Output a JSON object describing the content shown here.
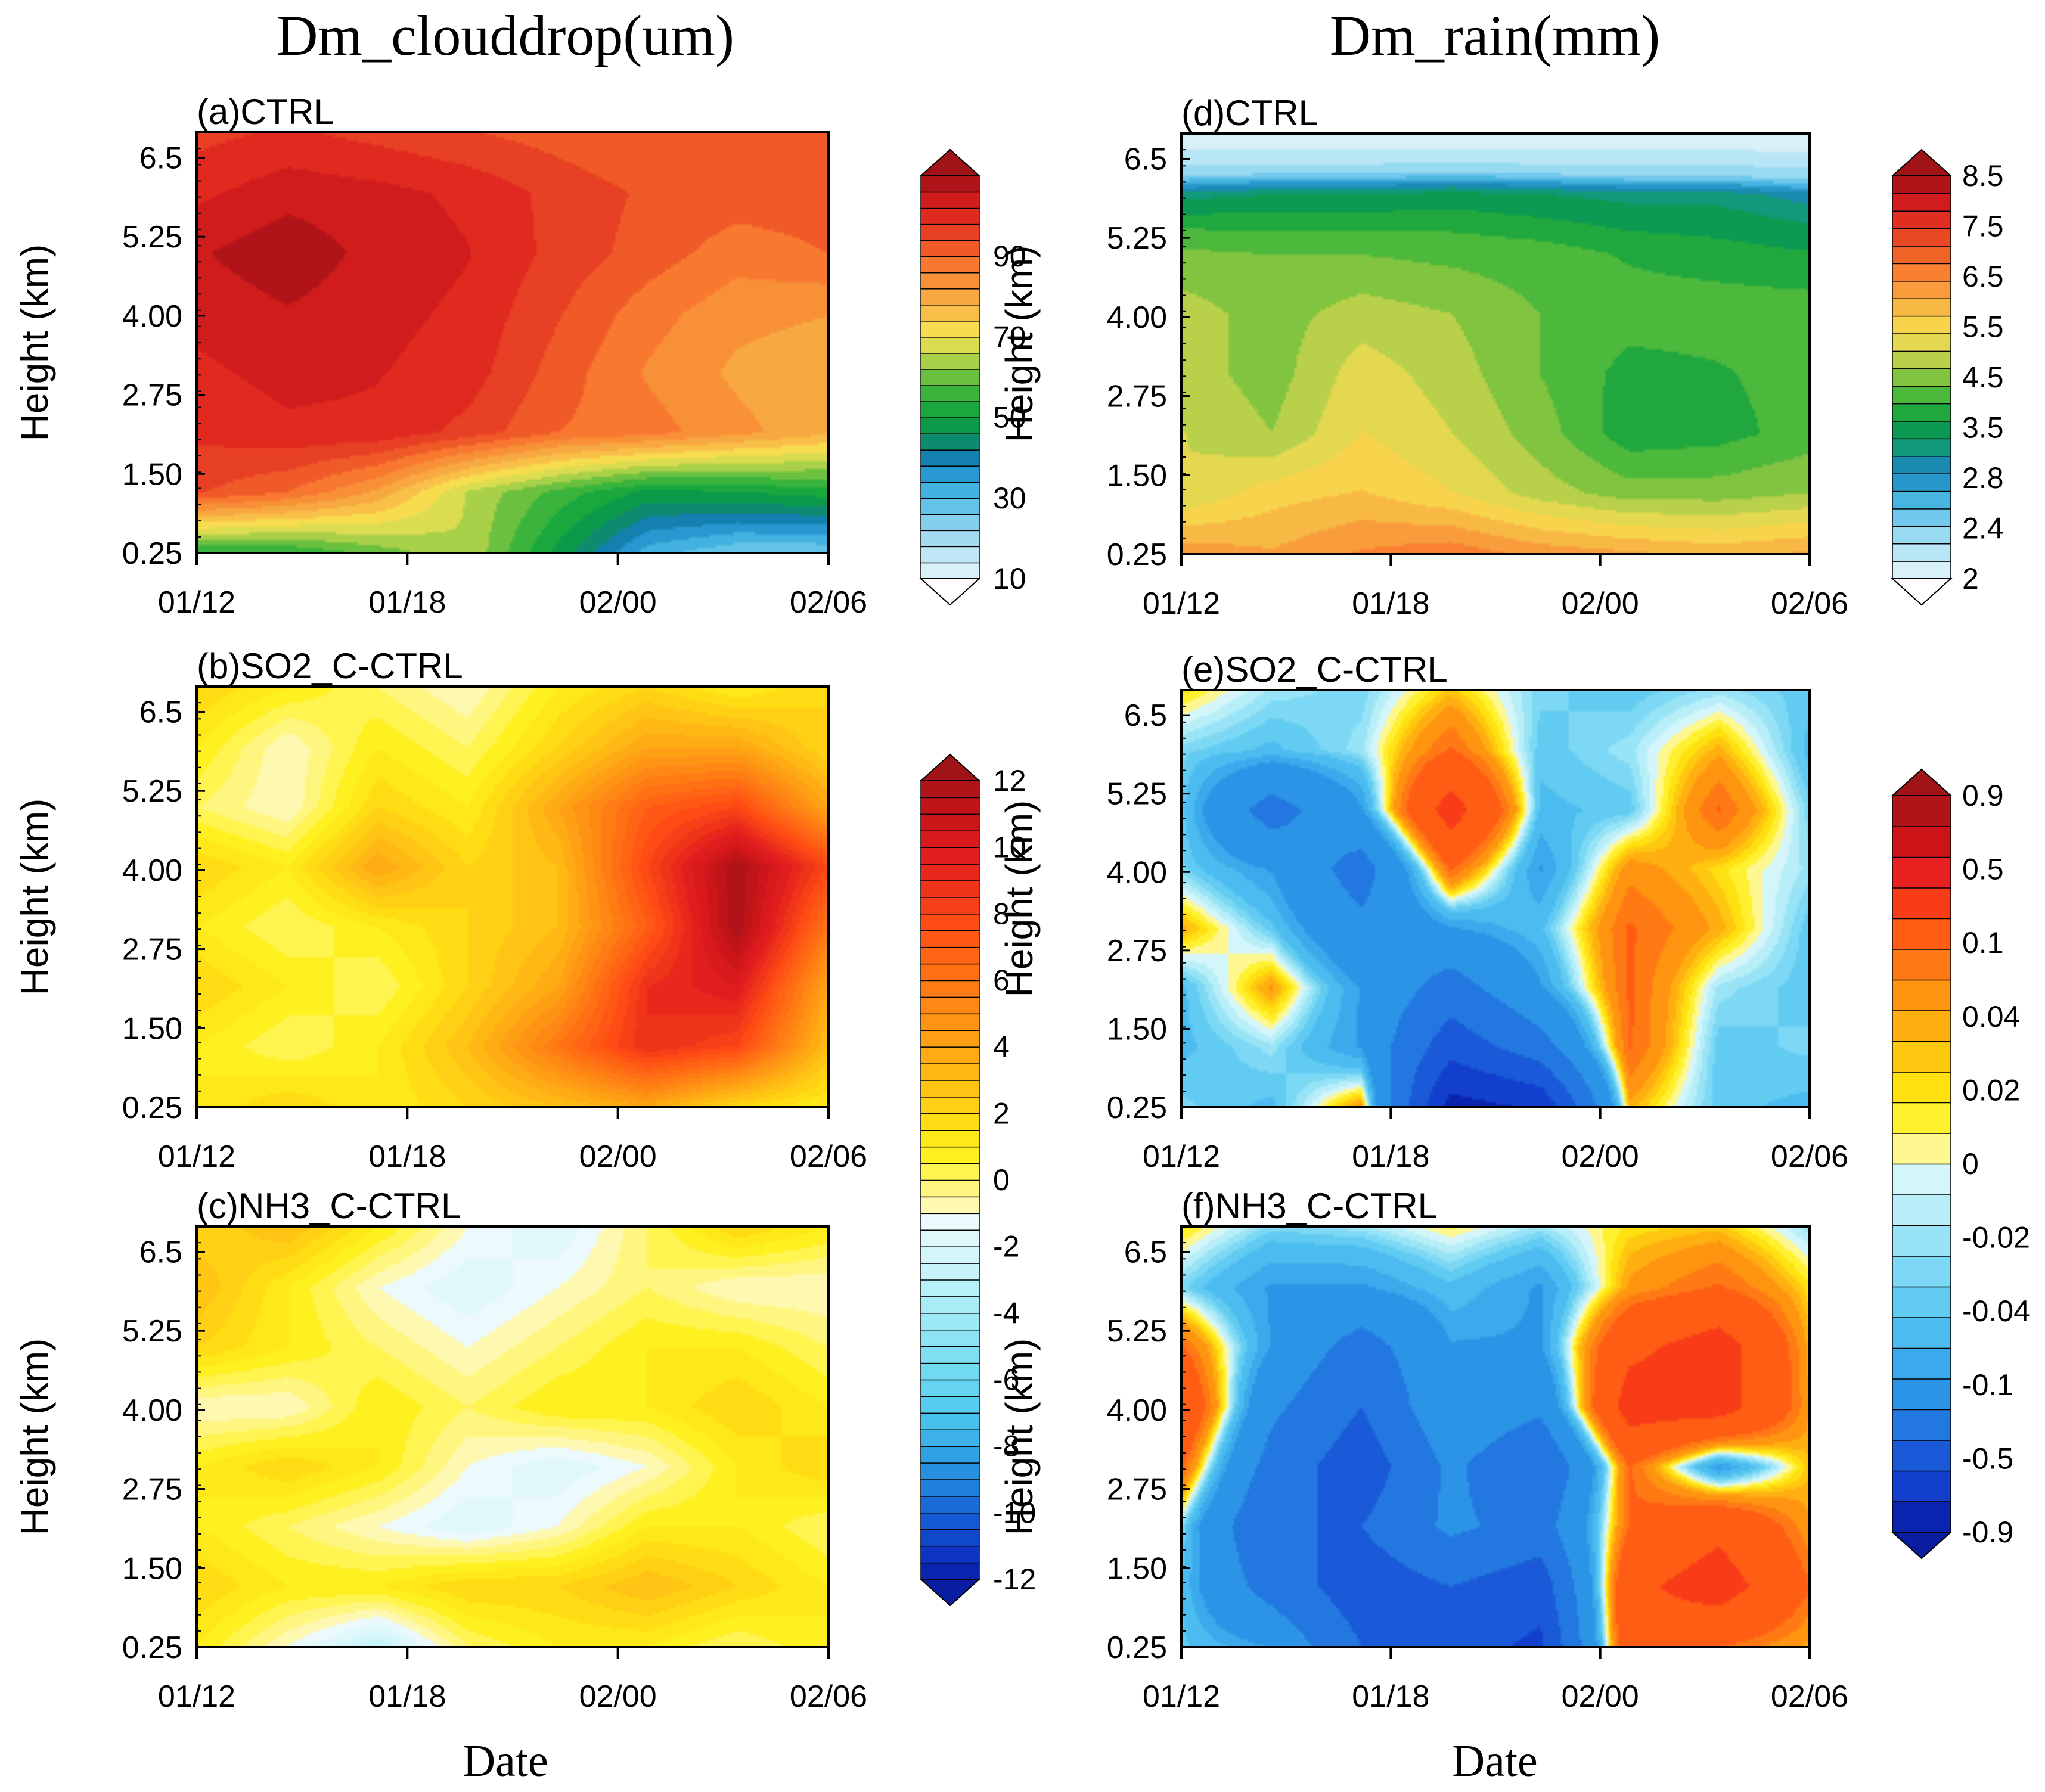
{
  "figure": {
    "left_column_title": "Dm_clouddrop(um)",
    "right_column_title": "Dm_rain(mm)",
    "x_axis_label": "Date",
    "y_axis_label": "Height (km)"
  },
  "colorbars": [
    {
      "id": "cb1",
      "name": "colorbar-clouddrop-ctrl",
      "labels": [
        "10",
        "30",
        "50",
        "70",
        "90"
      ],
      "colors": [
        "#d8f0f8",
        "#bfe6f4",
        "#a4dbf0",
        "#85cfec",
        "#63c2e8",
        "#44b2e0",
        "#2898d0",
        "#1480b0",
        "#0e8a70",
        "#0a9a4a",
        "#1aa83e",
        "#3ab43c",
        "#6cc040",
        "#a8d048",
        "#dcdc50",
        "#f8dc50",
        "#f8c048",
        "#f8a840",
        "#f89038",
        "#f87830",
        "#f05a28",
        "#e84024",
        "#e02a20",
        "#d01c1c",
        "#b01418"
      ],
      "arrow_low": "#ffffff",
      "arrow_high": "#a01418"
    },
    {
      "id": "cb2",
      "name": "colorbar-clouddrop-diff",
      "labels": [
        "-12",
        "-10",
        "-8",
        "-6",
        "-4",
        "-2",
        "0",
        "2",
        "4",
        "6",
        "8",
        "10",
        "12"
      ],
      "colors": [
        "#0a24b0",
        "#0c34c0",
        "#1048cc",
        "#1458d4",
        "#1a6ad8",
        "#207edc",
        "#2890e0",
        "#30a2e4",
        "#3cb2e8",
        "#48c0ec",
        "#56ccee",
        "#64d4f0",
        "#72daf0",
        "#80dff2",
        "#8ee4f4",
        "#9ce8f5",
        "#aaecf6",
        "#b8f0f8",
        "#c6f4fa",
        "#d4f6fb",
        "#e0f8fc",
        "#ecfafd",
        "#fff8b0",
        "#fff680",
        "#fff450",
        "#fff020",
        "#ffe818",
        "#ffdc14",
        "#ffd014",
        "#ffc414",
        "#ffb814",
        "#ffac14",
        "#ffa014",
        "#ff9414",
        "#ff8814",
        "#ff7c14",
        "#ff7014",
        "#ff6414",
        "#ff5814",
        "#ff4c14",
        "#f84018",
        "#f0341a",
        "#e8281c",
        "#e01e1e",
        "#d81a1c",
        "#cc161a",
        "#c01418",
        "#b01418"
      ],
      "arrow_low": "#0a1ca0",
      "arrow_high": "#a01418"
    },
    {
      "id": "cb3",
      "name": "colorbar-rain-ctrl",
      "labels": [
        "2",
        "2.4",
        "2.8",
        "3.5",
        "4.5",
        "5.5",
        "6.5",
        "7.5",
        "8.5"
      ],
      "colors": [
        "#d8f0f8",
        "#b8e6f6",
        "#98daf2",
        "#70c8ec",
        "#48b4e0",
        "#2898cc",
        "#1a8ab0",
        "#12987a",
        "#0c9a52",
        "#20a83e",
        "#4cb83c",
        "#80c440",
        "#b8d04a",
        "#e4d850",
        "#f8d44c",
        "#f8b844",
        "#f89c3c",
        "#f88030",
        "#f06428",
        "#e84822",
        "#e02e20",
        "#d01c1c",
        "#b01418"
      ],
      "arrow_low": "#ffffff",
      "arrow_high": "#a01418"
    },
    {
      "id": "cb4",
      "name": "colorbar-rain-diff",
      "labels": [
        "0.9",
        "0.5",
        "0.1",
        "0.04",
        "0.02",
        "0",
        "-0.02",
        "-0.04",
        "-0.1",
        "-0.5",
        "-0.9"
      ],
      "colors": [
        "#0a24b0",
        "#1240cc",
        "#1a5ad8",
        "#2278e0",
        "#2c94e6",
        "#3aaaec",
        "#4cbcf0",
        "#62cbf2",
        "#7cd8f4",
        "#98e4f6",
        "#b8eef8",
        "#d4f6fb",
        "#fff890",
        "#fff030",
        "#ffe010",
        "#ffc810",
        "#ffb010",
        "#ff9410",
        "#ff7a14",
        "#ff5c14",
        "#f83c18",
        "#e82020",
        "#cc1418",
        "#b01418"
      ],
      "arrow_low": "#0a1ca0",
      "arrow_high": "#a01418"
    }
  ],
  "chart_data": [
    {
      "id": "a",
      "type": "heatmap",
      "title": "(a)CTRL",
      "xlabel": "Date",
      "ylabel": "Height (km)",
      "x_ticks": [
        "01/12",
        "01/18",
        "02/00",
        "02/06"
      ],
      "y_ticks": [
        "0.25",
        "1.50",
        "2.75",
        "4.00",
        "5.25",
        "6.5"
      ],
      "ylim": [
        0.25,
        6.9
      ],
      "colorbar": "cb1",
      "clim": [
        10,
        100
      ],
      "values": [
        [
          50,
          50,
          55,
          60,
          45,
          30,
          25,
          25
        ],
        [
          86,
          82,
          74,
          60,
          52,
          45,
          46,
          48
        ],
        [
          90,
          92,
          92,
          88,
          82,
          80,
          76,
          72
        ],
        [
          92,
          94,
          93,
          91,
          84,
          78,
          74,
          72
        ],
        [
          94,
          96,
          94,
          92,
          86,
          80,
          76,
          75
        ],
        [
          96,
          99,
          95,
          93,
          88,
          84,
          80,
          82
        ],
        [
          92,
          95,
          94,
          92,
          88,
          85,
          84,
          84
        ],
        [
          88,
          90,
          88,
          86,
          84,
          82,
          82,
          82
        ]
      ]
    },
    {
      "id": "b",
      "type": "heatmap",
      "title": "(b)SO2_C-CTRL",
      "xlabel": "Date",
      "ylabel": "Height (km)",
      "x_ticks": [
        "01/12",
        "01/18",
        "02/00",
        "02/06"
      ],
      "y_ticks": [
        "0.25",
        "1.50",
        "2.75",
        "4.00",
        "5.25",
        "6.5"
      ],
      "ylim": [
        0.25,
        6.9
      ],
      "colorbar": "cb2",
      "clim": [
        -12,
        12
      ],
      "values": [
        [
          1,
          2,
          1,
          2,
          3,
          4,
          2,
          1
        ],
        [
          1,
          0,
          1,
          3,
          6,
          9,
          8,
          3
        ],
        [
          2,
          1,
          0,
          2,
          4,
          9,
          10,
          4
        ],
        [
          1,
          0,
          1,
          2,
          3,
          7,
          12,
          6
        ],
        [
          2,
          1,
          4,
          2,
          3,
          8,
          12,
          8
        ],
        [
          0,
          -1,
          2,
          1,
          4,
          7,
          8,
          4
        ],
        [
          1,
          -1,
          1,
          0,
          2,
          4,
          4,
          2
        ],
        [
          2,
          1,
          0,
          -1,
          1,
          2,
          1,
          2
        ]
      ]
    },
    {
      "id": "c",
      "type": "heatmap",
      "title": "(c)NH3_C-CTRL",
      "xlabel": "Date",
      "ylabel": "Height (km)",
      "x_ticks": [
        "01/12",
        "01/18",
        "02/00",
        "02/06"
      ],
      "y_ticks": [
        "0.25",
        "1.50",
        "2.75",
        "4.00",
        "5.25",
        "6.5"
      ],
      "ylim": [
        0.25,
        6.9
      ],
      "colorbar": "cb2",
      "clim": [
        -12,
        12
      ],
      "values": [
        [
          1,
          -1,
          -3,
          0,
          1,
          1,
          0,
          1
        ],
        [
          2,
          1,
          1,
          2,
          2,
          3,
          2,
          1
        ],
        [
          1,
          0,
          -1,
          -2,
          -1,
          1,
          1,
          0
        ],
        [
          1,
          2,
          1,
          -1,
          -2,
          -1,
          1,
          2
        ],
        [
          -1,
          -1,
          1,
          0,
          1,
          1,
          2,
          1
        ],
        [
          2,
          1,
          0,
          -1,
          0,
          1,
          1,
          0
        ],
        [
          3,
          1,
          -1,
          -2,
          -1,
          0,
          -1,
          -1
        ],
        [
          2,
          3,
          1,
          -1,
          -2,
          0,
          2,
          1
        ]
      ]
    },
    {
      "id": "d",
      "type": "heatmap",
      "title": "(d)CTRL",
      "xlabel": "Date",
      "ylabel": "Height (km)",
      "x_ticks": [
        "01/12",
        "01/18",
        "02/00",
        "02/06"
      ],
      "y_ticks": [
        "0.25",
        "1.50",
        "2.75",
        "4.00",
        "5.25",
        "6.5"
      ],
      "ylim": [
        0.25,
        6.9
      ],
      "colorbar": "cb3",
      "clim": [
        2,
        8.5
      ],
      "values": [
        [
          6.0,
          5.8,
          6.2,
          6.4,
          6.0,
          5.8,
          5.6,
          5.8
        ],
        [
          4.6,
          5.2,
          5.4,
          5.0,
          4.4,
          4.0,
          4.0,
          4.2
        ],
        [
          4.6,
          4.2,
          5.0,
          4.6,
          4.0,
          3.2,
          3.3,
          3.6
        ],
        [
          4.4,
          4.0,
          4.8,
          4.4,
          3.8,
          3.3,
          3.4,
          3.6
        ],
        [
          4.4,
          4.0,
          4.4,
          4.2,
          3.8,
          3.6,
          3.6,
          3.6
        ],
        [
          3.9,
          3.8,
          3.8,
          3.7,
          3.6,
          3.4,
          3.3,
          3.2
        ],
        [
          2.8,
          2.9,
          2.9,
          3.0,
          2.9,
          2.8,
          2.8,
          2.6
        ],
        [
          0.5,
          0.5,
          0.5,
          0.5,
          0.5,
          0.5,
          0.5,
          0.5
        ]
      ]
    },
    {
      "id": "e",
      "type": "heatmap",
      "title": "(e)SO2_C-CTRL",
      "xlabel": "Date",
      "ylabel": "Height (km)",
      "x_ticks": [
        "01/12",
        "01/18",
        "02/00",
        "02/06"
      ],
      "y_ticks": [
        "0.25",
        "1.50",
        "2.75",
        "4.00",
        "5.25",
        "6.5"
      ],
      "ylim": [
        0.25,
        6.9
      ],
      "colorbar": "cb4",
      "clim": [
        -0.9,
        0.9
      ],
      "values": [
        [
          -0.03,
          -0.05,
          0.05,
          -0.8,
          -0.7,
          0.04,
          -0.04,
          -0.05
        ],
        [
          -0.05,
          -0.02,
          -0.1,
          -0.5,
          -0.3,
          0.1,
          -0.04,
          -0.03
        ],
        [
          -0.05,
          0.05,
          -0.1,
          -0.3,
          -0.1,
          0.1,
          -0.02,
          -0.04
        ],
        [
          0.04,
          -0.04,
          -0.2,
          -0.1,
          -0.05,
          0.1,
          0.04,
          -0.04
        ],
        [
          -0.03,
          -0.1,
          -0.3,
          0.1,
          -0.1,
          0.06,
          0.02,
          -0.02
        ],
        [
          -0.04,
          -0.3,
          -0.1,
          0.3,
          -0.05,
          -0.04,
          0.1,
          -0.03
        ],
        [
          -0.03,
          -0.05,
          -0.02,
          0.1,
          -0.04,
          -0.02,
          0.04,
          -0.05
        ],
        [
          0.02,
          -0.02,
          -0.03,
          0.03,
          -0.03,
          -0.04,
          -0.02,
          -0.04
        ]
      ]
    },
    {
      "id": "f",
      "type": "heatmap",
      "title": "(f)NH3_C-CTRL",
      "xlabel": "Date",
      "ylabel": "Height (km)",
      "x_ticks": [
        "01/12",
        "01/18",
        "02/00",
        "02/06"
      ],
      "y_ticks": [
        "0.25",
        "1.50",
        "2.75",
        "4.00",
        "5.25",
        "6.5"
      ],
      "ylim": [
        0.25,
        6.9
      ],
      "colorbar": "cb4",
      "clim": [
        -0.9,
        0.9
      ],
      "values": [
        [
          -0.04,
          -0.1,
          -0.4,
          -0.5,
          -0.6,
          0.2,
          0.1,
          0.04
        ],
        [
          -0.05,
          -0.3,
          -0.5,
          -0.4,
          -0.5,
          0.2,
          0.3,
          0.1
        ],
        [
          -0.03,
          -0.4,
          -0.4,
          -0.2,
          -0.3,
          0.1,
          0.2,
          0.05
        ],
        [
          0.1,
          -0.3,
          -0.5,
          -0.2,
          -0.4,
          0.1,
          -0.1,
          0.03
        ],
        [
          0.2,
          -0.2,
          -0.4,
          -0.1,
          -0.2,
          0.3,
          0.3,
          0.05
        ],
        [
          0.1,
          -0.1,
          -0.3,
          -0.1,
          -0.1,
          0.2,
          0.3,
          0.04
        ],
        [
          -0.03,
          -0.1,
          -0.1,
          -0.05,
          -0.1,
          0.05,
          0.1,
          0.02
        ],
        [
          0.02,
          -0.03,
          -0.02,
          0.01,
          -0.02,
          0.02,
          0.03,
          -0.02
        ]
      ]
    }
  ]
}
